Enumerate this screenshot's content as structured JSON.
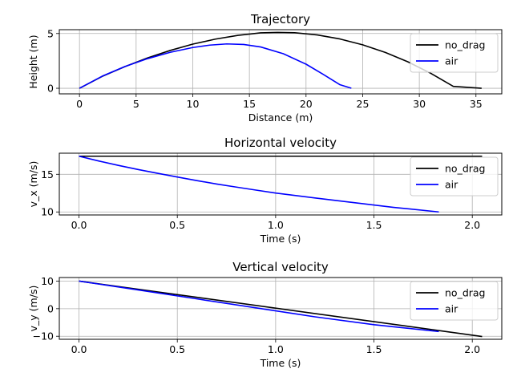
{
  "chart_data": [
    {
      "type": "line",
      "name": "trajectory",
      "title": "Trajectory",
      "xlabel": "Distance (m)",
      "ylabel": "Height (m)",
      "xlim": [
        -1.78,
        37.28
      ],
      "ylim": [
        -0.51,
        5.35
      ],
      "xticks": [
        0,
        5,
        10,
        15,
        20,
        25,
        30,
        35
      ],
      "yticks": [
        0,
        5
      ],
      "grid": true,
      "legend": "upper-right",
      "series": [
        {
          "name": "no_drag",
          "color": "#000000",
          "x": [
            0,
            2,
            4,
            6,
            8,
            10,
            12,
            14,
            16,
            17.5,
            19,
            21,
            23,
            25,
            27,
            29,
            31,
            33,
            35.5
          ],
          "y": [
            0,
            1.08,
            1.97,
            2.77,
            3.45,
            4.03,
            4.49,
            4.83,
            5.06,
            5.1,
            5.07,
            4.87,
            4.5,
            3.97,
            3.27,
            2.41,
            1.37,
            0.17,
            0
          ]
        },
        {
          "name": "air",
          "color": "#0000ff",
          "x": [
            0,
            2,
            4,
            6,
            8,
            10,
            11.5,
            13,
            14.5,
            16,
            18,
            20,
            21.5,
            23,
            24
          ],
          "y": [
            0,
            1.1,
            1.98,
            2.7,
            3.28,
            3.72,
            3.94,
            4.05,
            4.0,
            3.77,
            3.15,
            2.2,
            1.28,
            0.32,
            0
          ]
        }
      ]
    },
    {
      "type": "line",
      "name": "horizontal-velocity",
      "title": "Horizontal velocity",
      "xlabel": "Time (s)",
      "ylabel": "v_x (m/s)",
      "xlim": [
        -0.1,
        2.15
      ],
      "ylim": [
        9.6,
        17.8
      ],
      "xticks": [
        0.0,
        0.5,
        1.0,
        1.5,
        2.0
      ],
      "yticks": [
        10,
        15
      ],
      "grid": true,
      "legend": "upper-right",
      "series": [
        {
          "name": "no_drag",
          "color": "#000000",
          "x": [
            0,
            2.05
          ],
          "y": [
            17.4,
            17.4
          ]
        },
        {
          "name": "air",
          "color": "#0000ff",
          "x": [
            0,
            0.1,
            0.2,
            0.3,
            0.4,
            0.5,
            0.6,
            0.7,
            0.8,
            0.9,
            1.0,
            1.2,
            1.4,
            1.6,
            1.83
          ],
          "y": [
            17.4,
            16.77,
            16.18,
            15.64,
            15.13,
            14.64,
            14.16,
            13.71,
            13.3,
            12.9,
            12.51,
            11.86,
            11.23,
            10.61,
            10.0
          ]
        }
      ]
    },
    {
      "type": "line",
      "name": "vertical-velocity",
      "title": "Vertical velocity",
      "xlabel": "Time (s)",
      "ylabel": "v_y (m/s)",
      "xlim": [
        -0.1,
        2.15
      ],
      "ylim": [
        -11.1,
        11.3
      ],
      "xticks": [
        0.0,
        0.5,
        1.0,
        1.5,
        2.0
      ],
      "yticks": [
        -10,
        0,
        10
      ],
      "grid": true,
      "legend": "upper-right",
      "series": [
        {
          "name": "no_drag",
          "color": "#000000",
          "x": [
            0,
            2.05
          ],
          "y": [
            10.0,
            -10.1
          ]
        },
        {
          "name": "air",
          "color": "#0000ff",
          "x": [
            0,
            0.3,
            0.6,
            0.9,
            1.2,
            1.5,
            1.83
          ],
          "y": [
            10.0,
            6.8,
            3.55,
            0.3,
            -2.95,
            -5.8,
            -8.3
          ]
        }
      ]
    }
  ]
}
